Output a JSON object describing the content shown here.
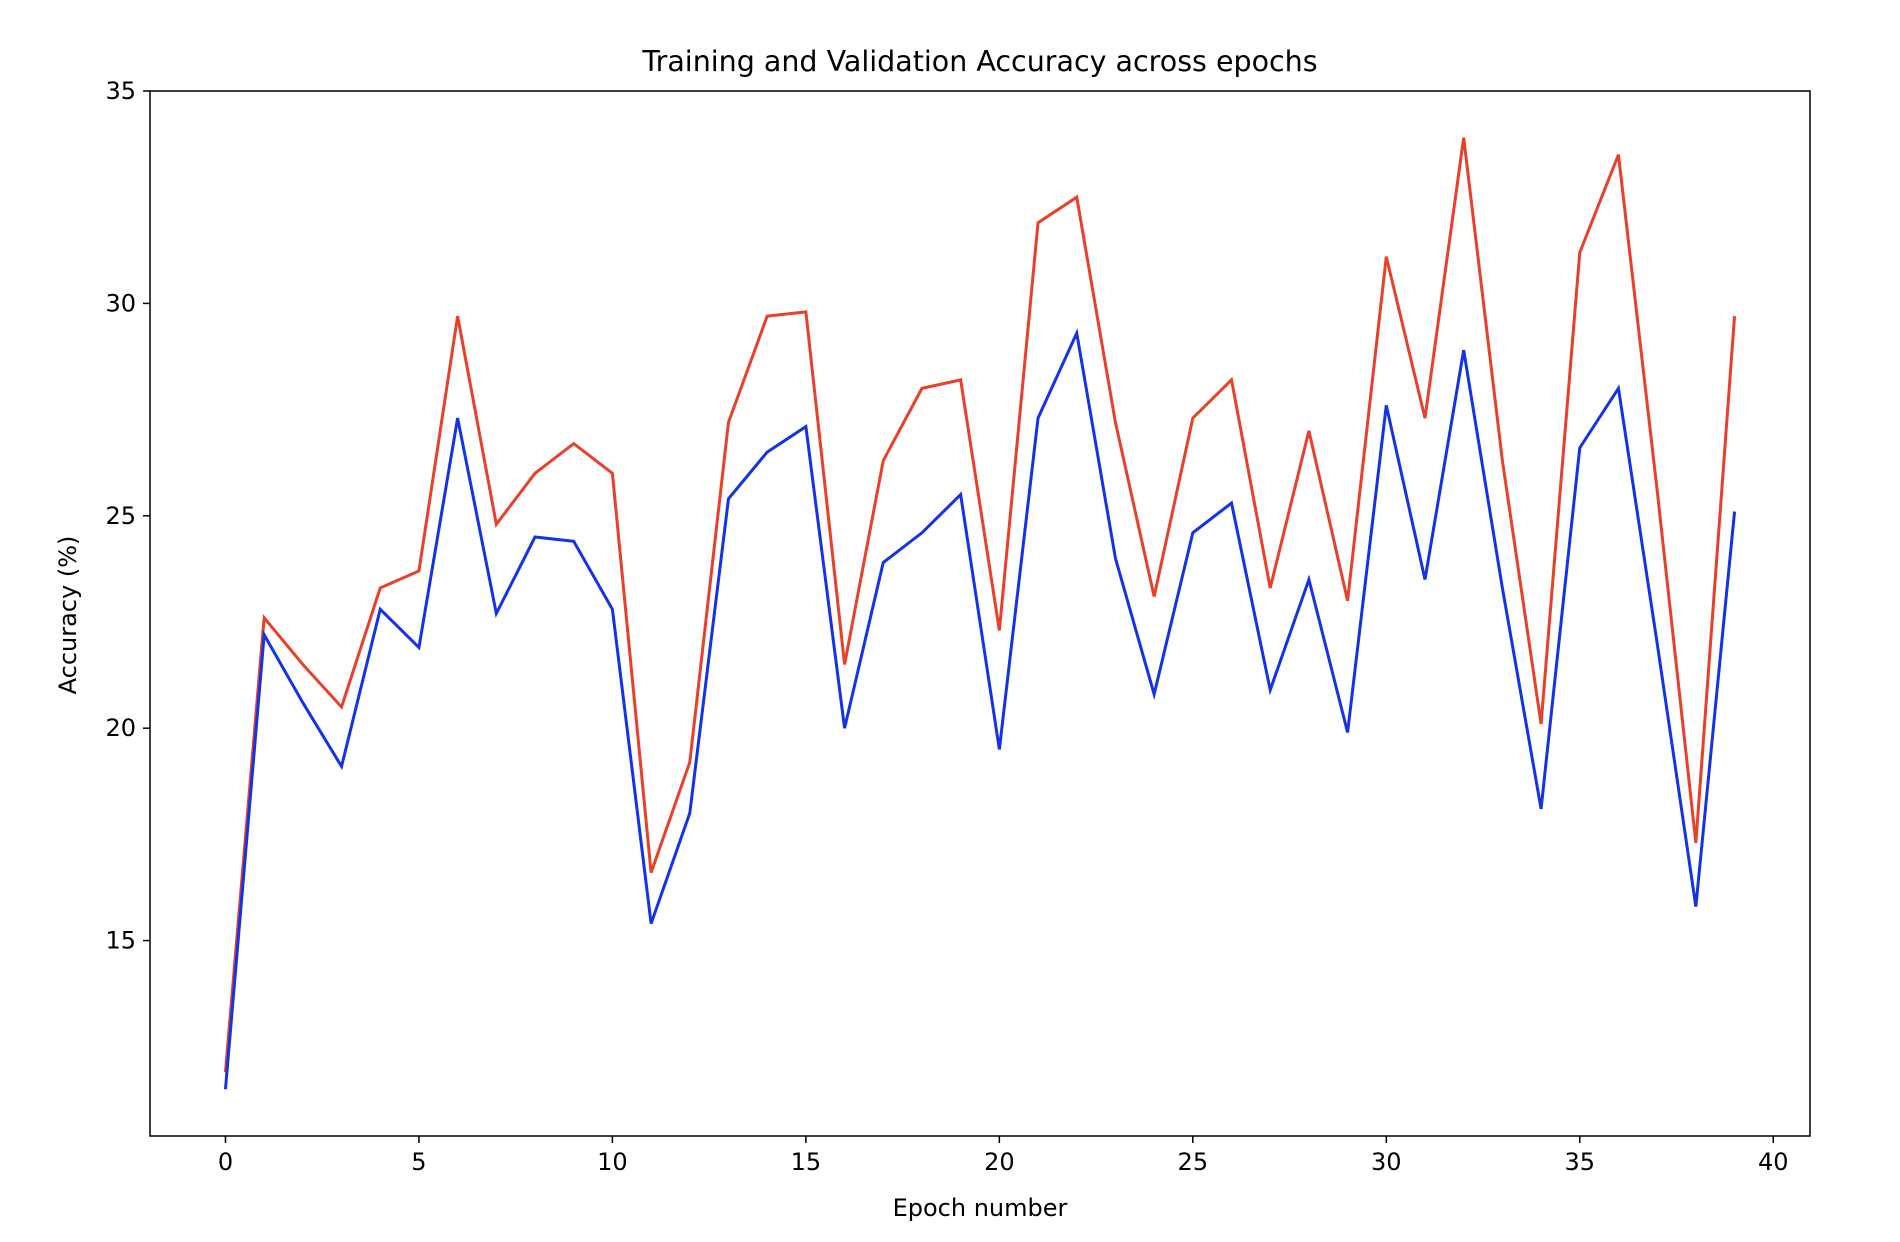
{
  "chart_data": {
    "type": "line",
    "title": "Training and Validation Accuracy across epochs",
    "xlabel": "Epoch number",
    "ylabel": "Accuracy (%)",
    "xlim": [
      -1.95,
      40.95
    ],
    "ylim": [
      10.4,
      35.0
    ],
    "xticks": [
      0,
      5,
      10,
      15,
      20,
      25,
      30,
      35,
      40
    ],
    "yticks": [
      15,
      20,
      25,
      30,
      35
    ],
    "grid": false,
    "legend": "none",
    "x": [
      0,
      1,
      2,
      3,
      4,
      5,
      6,
      7,
      8,
      9,
      10,
      11,
      12,
      13,
      14,
      15,
      16,
      17,
      18,
      19,
      20,
      21,
      22,
      23,
      24,
      25,
      26,
      27,
      28,
      29,
      30,
      31,
      32,
      33,
      34,
      35,
      36,
      37,
      38,
      39
    ],
    "series": [
      {
        "color": "#e8402a",
        "values": [
          11.9,
          22.6,
          21.5,
          20.5,
          23.3,
          23.7,
          29.7,
          24.8,
          26.0,
          26.7,
          26.0,
          16.6,
          19.2,
          27.2,
          29.7,
          29.8,
          21.5,
          26.3,
          28.0,
          28.2,
          22.3,
          31.9,
          32.5,
          27.2,
          23.1,
          27.3,
          28.2,
          23.3,
          27.0,
          23.0,
          31.1,
          27.3,
          33.9,
          26.3,
          20.1,
          31.2,
          33.5,
          25.6,
          17.3,
          29.7
        ]
      },
      {
        "color": "#1432e6",
        "values": [
          11.5,
          22.2,
          20.6,
          19.1,
          22.8,
          21.9,
          27.3,
          22.7,
          24.5,
          24.4,
          22.8,
          15.4,
          18.0,
          25.4,
          26.5,
          27.1,
          20.0,
          23.9,
          24.6,
          25.5,
          19.5,
          27.3,
          29.3,
          24.0,
          20.8,
          24.6,
          25.3,
          20.9,
          23.5,
          19.9,
          27.6,
          23.5,
          28.9,
          23.3,
          18.1,
          26.6,
          28.0,
          22.0,
          15.8,
          25.1
        ]
      }
    ]
  }
}
